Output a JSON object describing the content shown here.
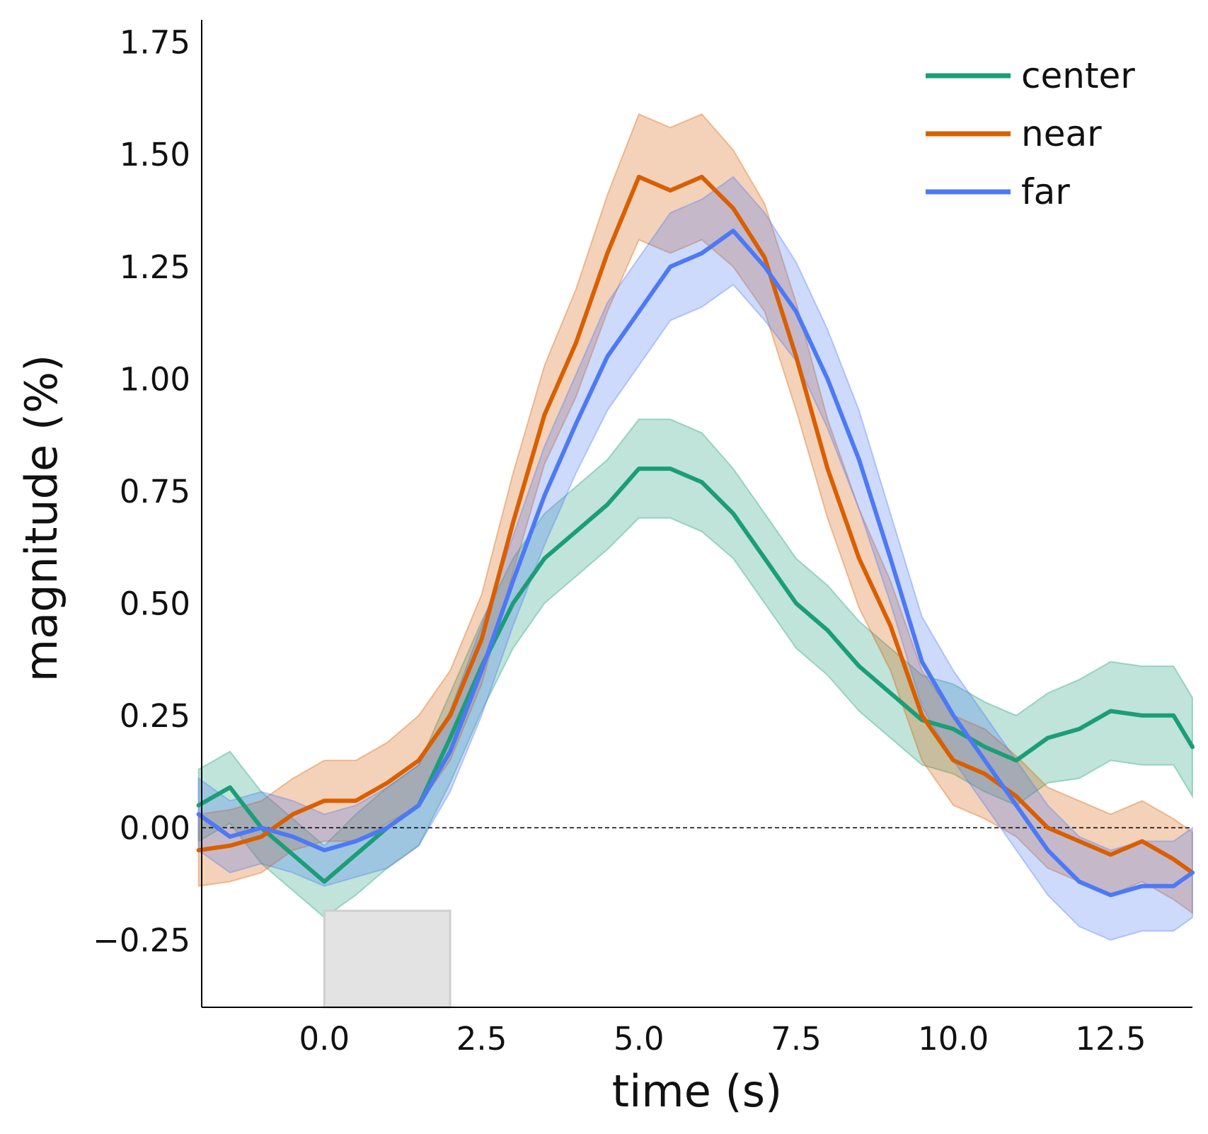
{
  "chart_data": {
    "type": "line",
    "title": "",
    "xlabel": "time (s)",
    "ylabel": "magnitude (%)",
    "xlim": [
      -1.95,
      13.8
    ],
    "ylim": [
      -0.4,
      1.8
    ],
    "xticks": [
      0.0,
      2.5,
      5.0,
      7.5,
      10.0,
      12.5
    ],
    "xtick_labels": [
      "0.0",
      "2.5",
      "5.0",
      "7.5",
      "10.0",
      "12.5"
    ],
    "yticks": [
      -0.25,
      0.0,
      0.25,
      0.5,
      0.75,
      1.0,
      1.25,
      1.5,
      1.75
    ],
    "ytick_labels": [
      "−0.25",
      "0.00",
      "0.25",
      "0.50",
      "0.75",
      "1.00",
      "1.25",
      "1.50",
      "1.75"
    ],
    "grid": false,
    "legend_position": "top-right",
    "zero_line": true,
    "stimulus_block": {
      "x_start": 0.0,
      "x_end": 2.0,
      "color": "#e3e3e3"
    },
    "x": [
      -2.0,
      -1.5,
      -1.0,
      -0.5,
      0.0,
      0.5,
      1.0,
      1.5,
      2.0,
      2.5,
      3.0,
      3.5,
      4.0,
      4.5,
      5.0,
      5.5,
      6.0,
      6.5,
      7.0,
      7.5,
      8.0,
      8.5,
      9.0,
      9.5,
      10.0,
      10.5,
      11.0,
      11.5,
      12.0,
      12.5,
      13.0,
      13.5,
      13.8
    ],
    "series": [
      {
        "name": "center",
        "color": "#1b9e77",
        "values": [
          0.05,
          0.09,
          0.0,
          -0.06,
          -0.12,
          -0.06,
          0.0,
          0.05,
          0.2,
          0.36,
          0.5,
          0.6,
          0.66,
          0.72,
          0.8,
          0.8,
          0.77,
          0.7,
          0.6,
          0.5,
          0.44,
          0.36,
          0.3,
          0.24,
          0.22,
          0.18,
          0.15,
          0.2,
          0.22,
          0.26,
          0.25,
          0.25,
          0.18
        ],
        "ci_half_width": [
          0.08,
          0.08,
          0.08,
          0.08,
          0.08,
          0.09,
          0.09,
          0.09,
          0.1,
          0.1,
          0.1,
          0.1,
          0.1,
          0.1,
          0.11,
          0.11,
          0.11,
          0.1,
          0.1,
          0.1,
          0.1,
          0.1,
          0.1,
          0.1,
          0.1,
          0.1,
          0.1,
          0.1,
          0.11,
          0.11,
          0.11,
          0.11,
          0.11
        ]
      },
      {
        "name": "near",
        "color": "#d95f02",
        "values": [
          -0.05,
          -0.04,
          -0.02,
          0.03,
          0.06,
          0.06,
          0.1,
          0.15,
          0.25,
          0.42,
          0.68,
          0.92,
          1.08,
          1.28,
          1.45,
          1.42,
          1.45,
          1.38,
          1.27,
          1.05,
          0.8,
          0.6,
          0.45,
          0.25,
          0.15,
          0.12,
          0.07,
          0.0,
          -0.03,
          -0.06,
          -0.03,
          -0.07,
          -0.1
        ],
        "ci_half_width": [
          0.08,
          0.08,
          0.08,
          0.08,
          0.09,
          0.09,
          0.09,
          0.1,
          0.1,
          0.1,
          0.11,
          0.11,
          0.12,
          0.13,
          0.14,
          0.14,
          0.14,
          0.13,
          0.12,
          0.12,
          0.11,
          0.11,
          0.1,
          0.1,
          0.1,
          0.1,
          0.09,
          0.09,
          0.09,
          0.09,
          0.09,
          0.09,
          0.09
        ]
      },
      {
        "name": "far",
        "color": "#4d79f5",
        "values": [
          0.03,
          -0.02,
          0.0,
          -0.02,
          -0.05,
          -0.03,
          0.0,
          0.05,
          0.17,
          0.35,
          0.55,
          0.74,
          0.9,
          1.05,
          1.15,
          1.25,
          1.28,
          1.33,
          1.25,
          1.15,
          1.0,
          0.82,
          0.6,
          0.37,
          0.25,
          0.15,
          0.05,
          -0.05,
          -0.12,
          -0.15,
          -0.13,
          -0.13,
          -0.1
        ],
        "ci_half_width": [
          0.08,
          0.08,
          0.08,
          0.08,
          0.08,
          0.08,
          0.09,
          0.09,
          0.09,
          0.1,
          0.1,
          0.11,
          0.11,
          0.12,
          0.12,
          0.12,
          0.12,
          0.12,
          0.12,
          0.11,
          0.11,
          0.11,
          0.1,
          0.1,
          0.1,
          0.1,
          0.1,
          0.1,
          0.1,
          0.1,
          0.1,
          0.1,
          0.1
        ]
      }
    ]
  }
}
